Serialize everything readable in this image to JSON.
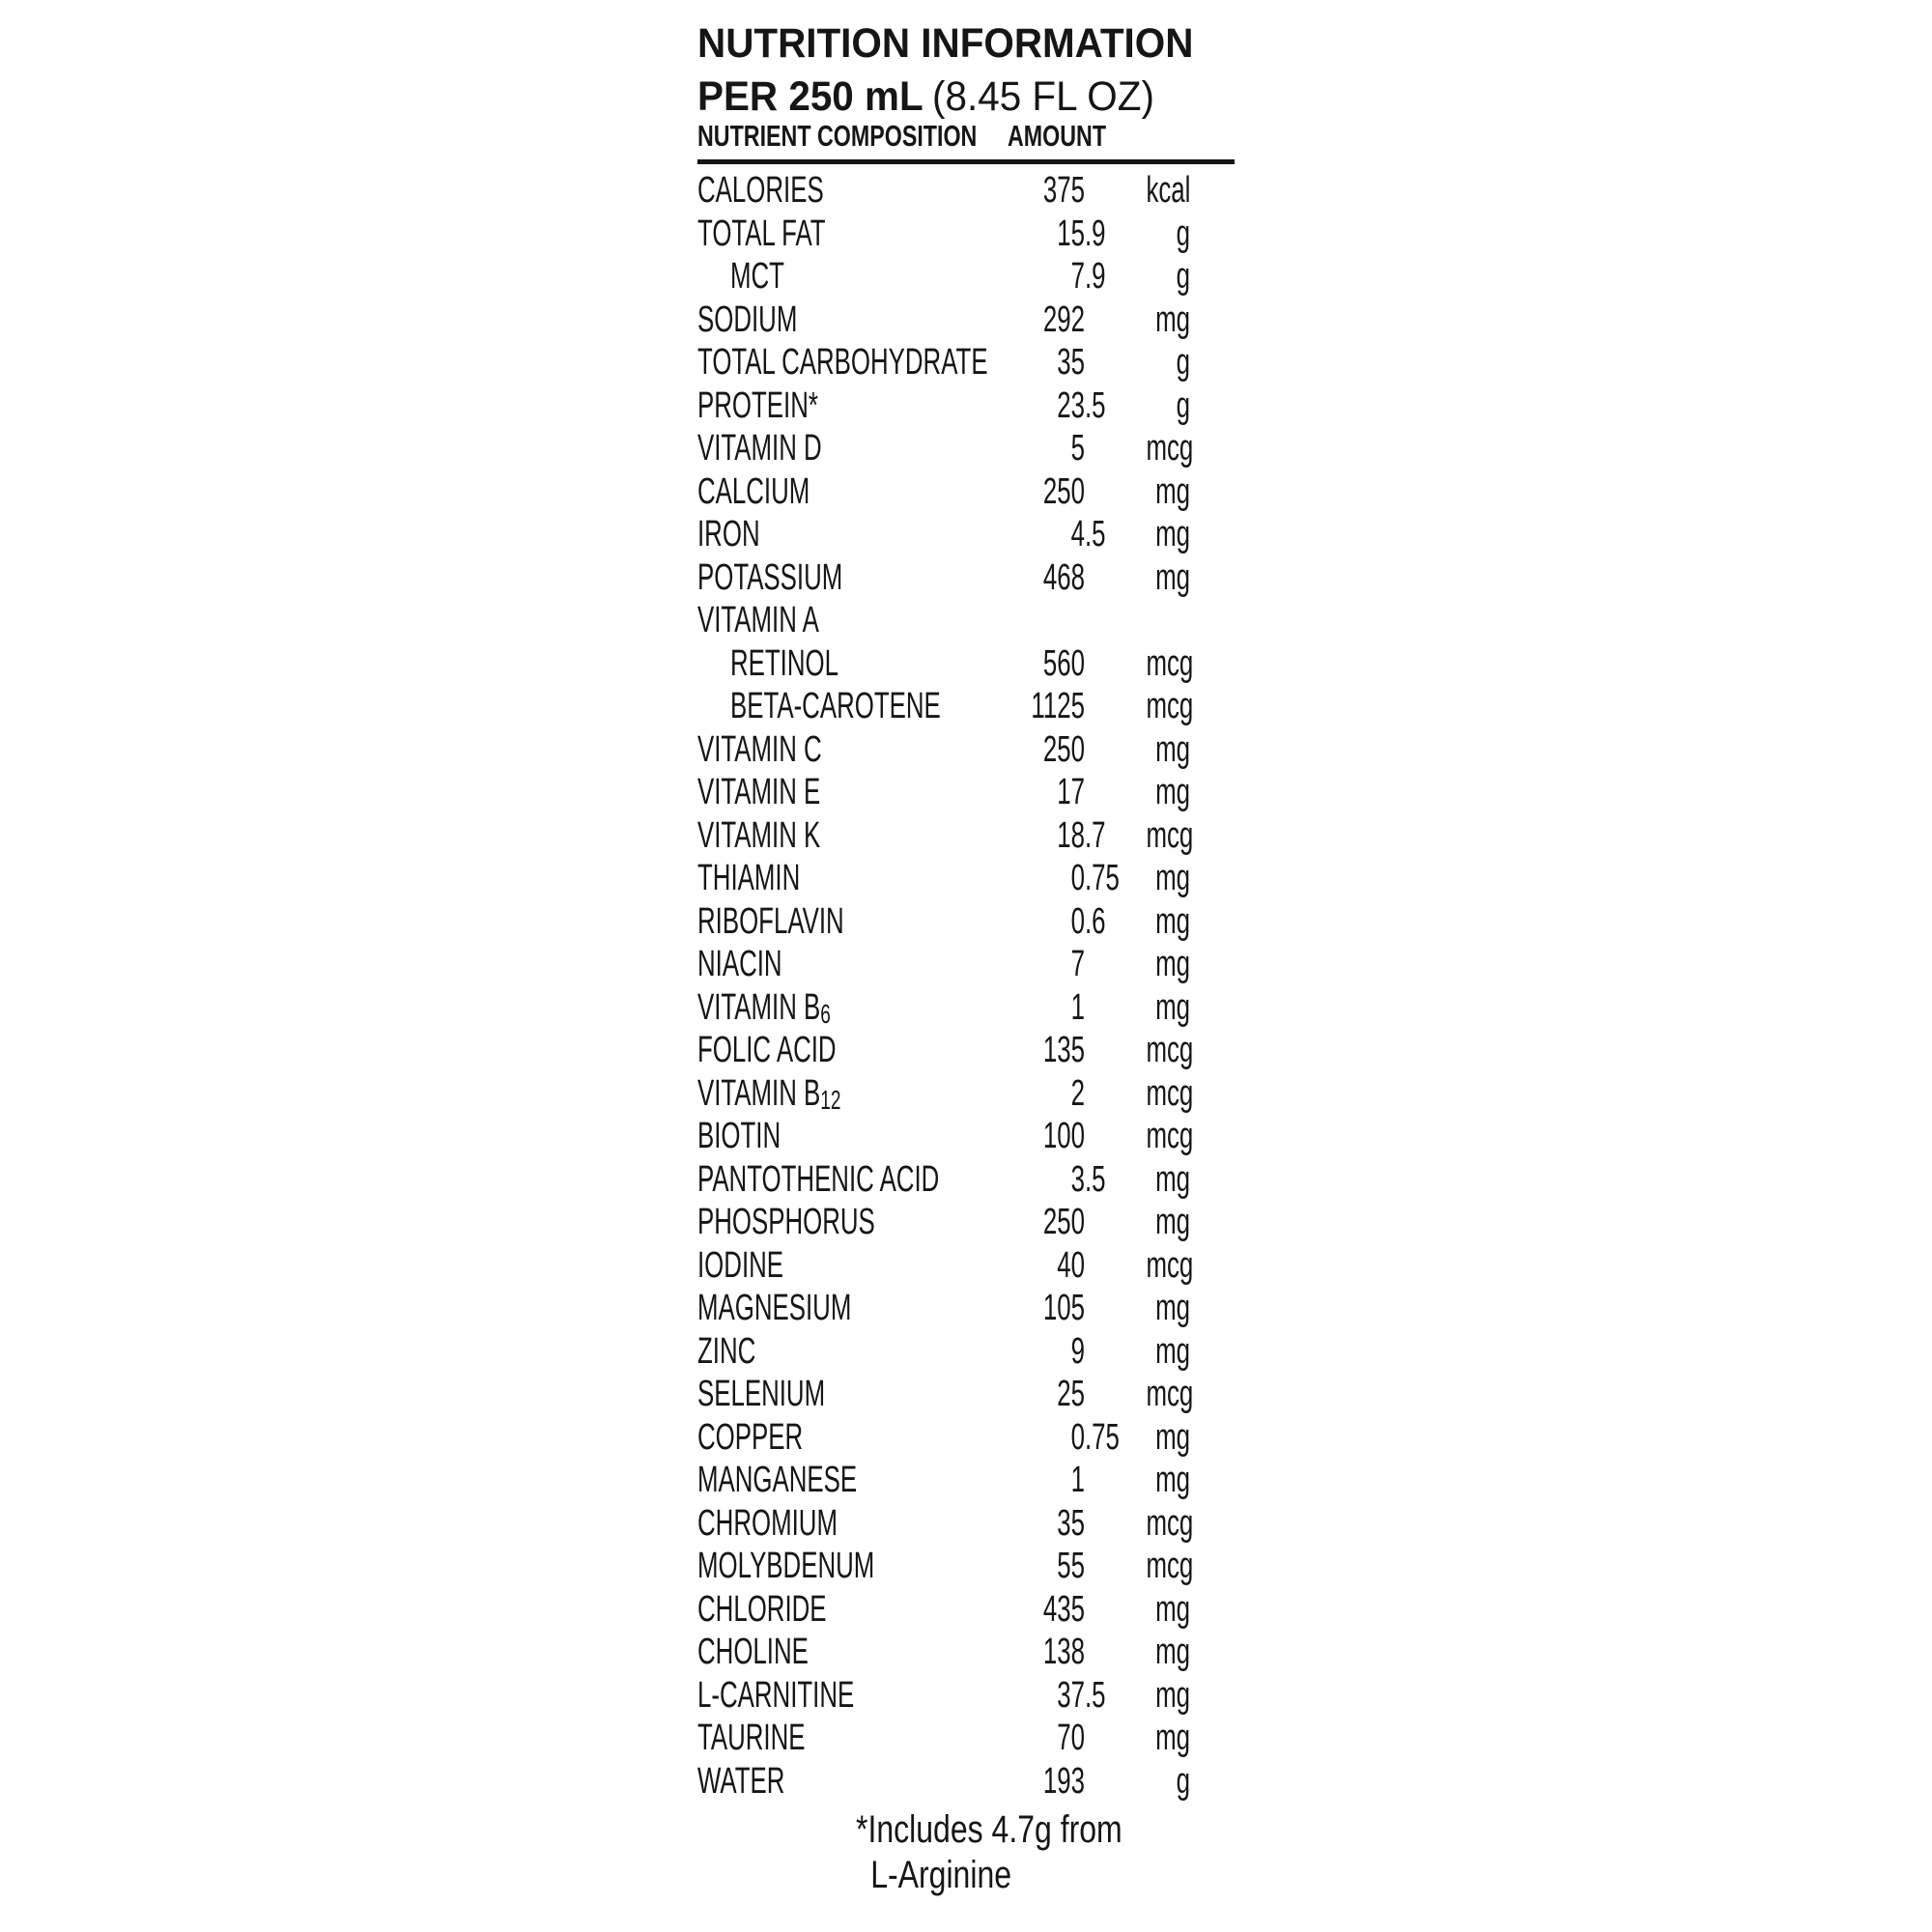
{
  "header": {
    "title": "NUTRITION INFORMATION",
    "serving_bold": "PER 250 mL",
    "serving_paren": "(8.45 FL OZ)",
    "col_nutrient": "NUTRIENT COMPOSITION",
    "col_amount": "AMOUNT"
  },
  "table": {
    "rows": [
      {
        "label": "CALORIES",
        "sub": "",
        "indent": false,
        "int": "375",
        "frac": "",
        "unit": "kcal"
      },
      {
        "label": "TOTAL FAT",
        "sub": "",
        "indent": false,
        "int": "15",
        "frac": ".9",
        "unit": "g"
      },
      {
        "label": "MCT",
        "sub": "",
        "indent": true,
        "int": "7",
        "frac": ".9",
        "unit": "g"
      },
      {
        "label": "SODIUM",
        "sub": "",
        "indent": false,
        "int": "292",
        "frac": "",
        "unit": "mg"
      },
      {
        "label": "TOTAL CARBOHYDRATE",
        "sub": "",
        "indent": false,
        "int": "35",
        "frac": "",
        "unit": "g"
      },
      {
        "label": "PROTEIN*",
        "sub": "",
        "indent": false,
        "int": "23",
        "frac": ".5",
        "unit": "g"
      },
      {
        "label": "VITAMIN D",
        "sub": "",
        "indent": false,
        "int": "5",
        "frac": "",
        "unit": "mcg"
      },
      {
        "label": "CALCIUM",
        "sub": "",
        "indent": false,
        "int": "250",
        "frac": "",
        "unit": "mg"
      },
      {
        "label": "IRON",
        "sub": "",
        "indent": false,
        "int": "4",
        "frac": ".5",
        "unit": "mg"
      },
      {
        "label": "POTASSIUM",
        "sub": "",
        "indent": false,
        "int": "468",
        "frac": "",
        "unit": "mg"
      },
      {
        "label": "VITAMIN A",
        "sub": "",
        "indent": false,
        "int": "",
        "frac": "",
        "unit": ""
      },
      {
        "label": "RETINOL",
        "sub": "",
        "indent": true,
        "int": "560",
        "frac": "",
        "unit": "mcg"
      },
      {
        "label": "BETA-CAROTENE",
        "sub": "",
        "indent": true,
        "int": "1125",
        "frac": "",
        "unit": "mcg"
      },
      {
        "label": "VITAMIN C",
        "sub": "",
        "indent": false,
        "int": "250",
        "frac": "",
        "unit": "mg"
      },
      {
        "label": "VITAMIN E",
        "sub": "",
        "indent": false,
        "int": "17",
        "frac": "",
        "unit": "mg"
      },
      {
        "label": "VITAMIN K",
        "sub": "",
        "indent": false,
        "int": "18",
        "frac": ".7",
        "unit": "mcg"
      },
      {
        "label": "THIAMIN",
        "sub": "",
        "indent": false,
        "int": "0",
        "frac": ".75",
        "unit": "mg"
      },
      {
        "label": "RIBOFLAVIN",
        "sub": "",
        "indent": false,
        "int": "0",
        "frac": ".6",
        "unit": "mg"
      },
      {
        "label": "NIACIN",
        "sub": "",
        "indent": false,
        "int": "7",
        "frac": "",
        "unit": "mg"
      },
      {
        "label": "VITAMIN B",
        "sub": "6",
        "indent": false,
        "int": "1",
        "frac": "",
        "unit": "mg"
      },
      {
        "label": "FOLIC ACID",
        "sub": "",
        "indent": false,
        "int": "135",
        "frac": "",
        "unit": "mcg"
      },
      {
        "label": "VITAMIN B",
        "sub": "12",
        "indent": false,
        "int": "2",
        "frac": "",
        "unit": "mcg"
      },
      {
        "label": "BIOTIN",
        "sub": "",
        "indent": false,
        "int": "100",
        "frac": "",
        "unit": "mcg"
      },
      {
        "label": "PANTOTHENIC ACID",
        "sub": "",
        "indent": false,
        "int": "3",
        "frac": ".5",
        "unit": "mg"
      },
      {
        "label": "PHOSPHORUS",
        "sub": "",
        "indent": false,
        "int": "250",
        "frac": "",
        "unit": "mg"
      },
      {
        "label": "IODINE",
        "sub": "",
        "indent": false,
        "int": "40",
        "frac": "",
        "unit": "mcg"
      },
      {
        "label": "MAGNESIUM",
        "sub": "",
        "indent": false,
        "int": "105",
        "frac": "",
        "unit": "mg"
      },
      {
        "label": "ZINC",
        "sub": "",
        "indent": false,
        "int": "9",
        "frac": "",
        "unit": "mg"
      },
      {
        "label": "SELENIUM",
        "sub": "",
        "indent": false,
        "int": "25",
        "frac": "",
        "unit": "mcg"
      },
      {
        "label": "COPPER",
        "sub": "",
        "indent": false,
        "int": "0",
        "frac": ".75",
        "unit": "mg"
      },
      {
        "label": "MANGANESE",
        "sub": "",
        "indent": false,
        "int": "1",
        "frac": "",
        "unit": "mg"
      },
      {
        "label": "CHROMIUM",
        "sub": "",
        "indent": false,
        "int": "35",
        "frac": "",
        "unit": "mcg"
      },
      {
        "label": "MOLYBDENUM",
        "sub": "",
        "indent": false,
        "int": "55",
        "frac": "",
        "unit": "mcg"
      },
      {
        "label": "CHLORIDE",
        "sub": "",
        "indent": false,
        "int": "435",
        "frac": "",
        "unit": "mg"
      },
      {
        "label": "CHOLINE",
        "sub": "",
        "indent": false,
        "int": "138",
        "frac": "",
        "unit": "mg"
      },
      {
        "label": "L-CARNITINE",
        "sub": "",
        "indent": false,
        "int": "37",
        "frac": ".5",
        "unit": "mg"
      },
      {
        "label": "TAURINE",
        "sub": "",
        "indent": false,
        "int": "70",
        "frac": "",
        "unit": "mg"
      },
      {
        "label": "WATER",
        "sub": "",
        "indent": false,
        "int": "193",
        "frac": "",
        "unit": "g"
      }
    ]
  },
  "footnote": {
    "line1": "*Includes 4.7g from",
    "line2": "L-Arginine"
  },
  "colors": {
    "text": "#161616",
    "background": "#ffffff"
  }
}
